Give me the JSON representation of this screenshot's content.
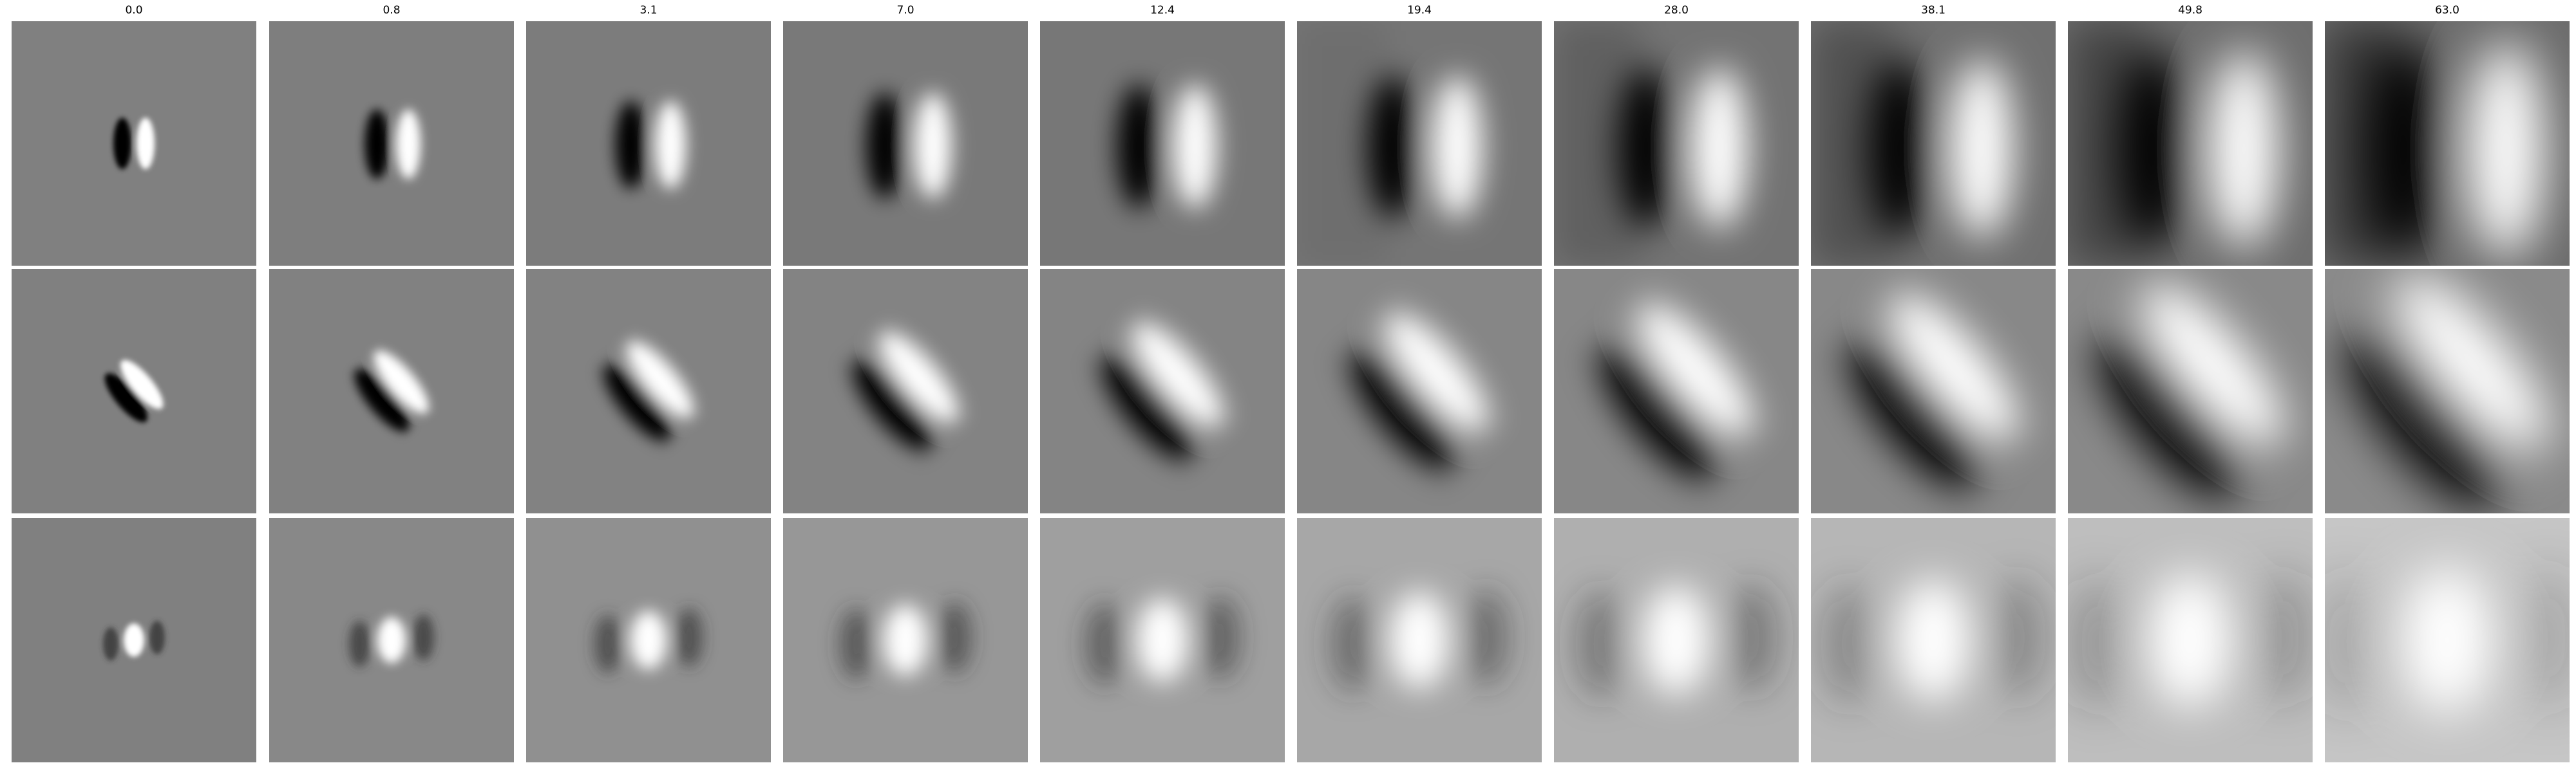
{
  "column_titles": [
    "0.0",
    "0.8",
    "3.1",
    "7.0",
    "12.4",
    "19.4",
    "28.0",
    "38.1",
    "49.8",
    "63.0"
  ],
  "rows": [
    {
      "pattern": "vertical-dark-left-bright-right"
    },
    {
      "pattern": "diagonal-dark-lower-left-bright-upper-right"
    },
    {
      "pattern": "central-bright-blob-with-dark-flanks"
    }
  ],
  "colors": {
    "background": "#ffffff",
    "neutral_gray": "#808080",
    "light": "#ffffff",
    "dark": "#000000"
  }
}
